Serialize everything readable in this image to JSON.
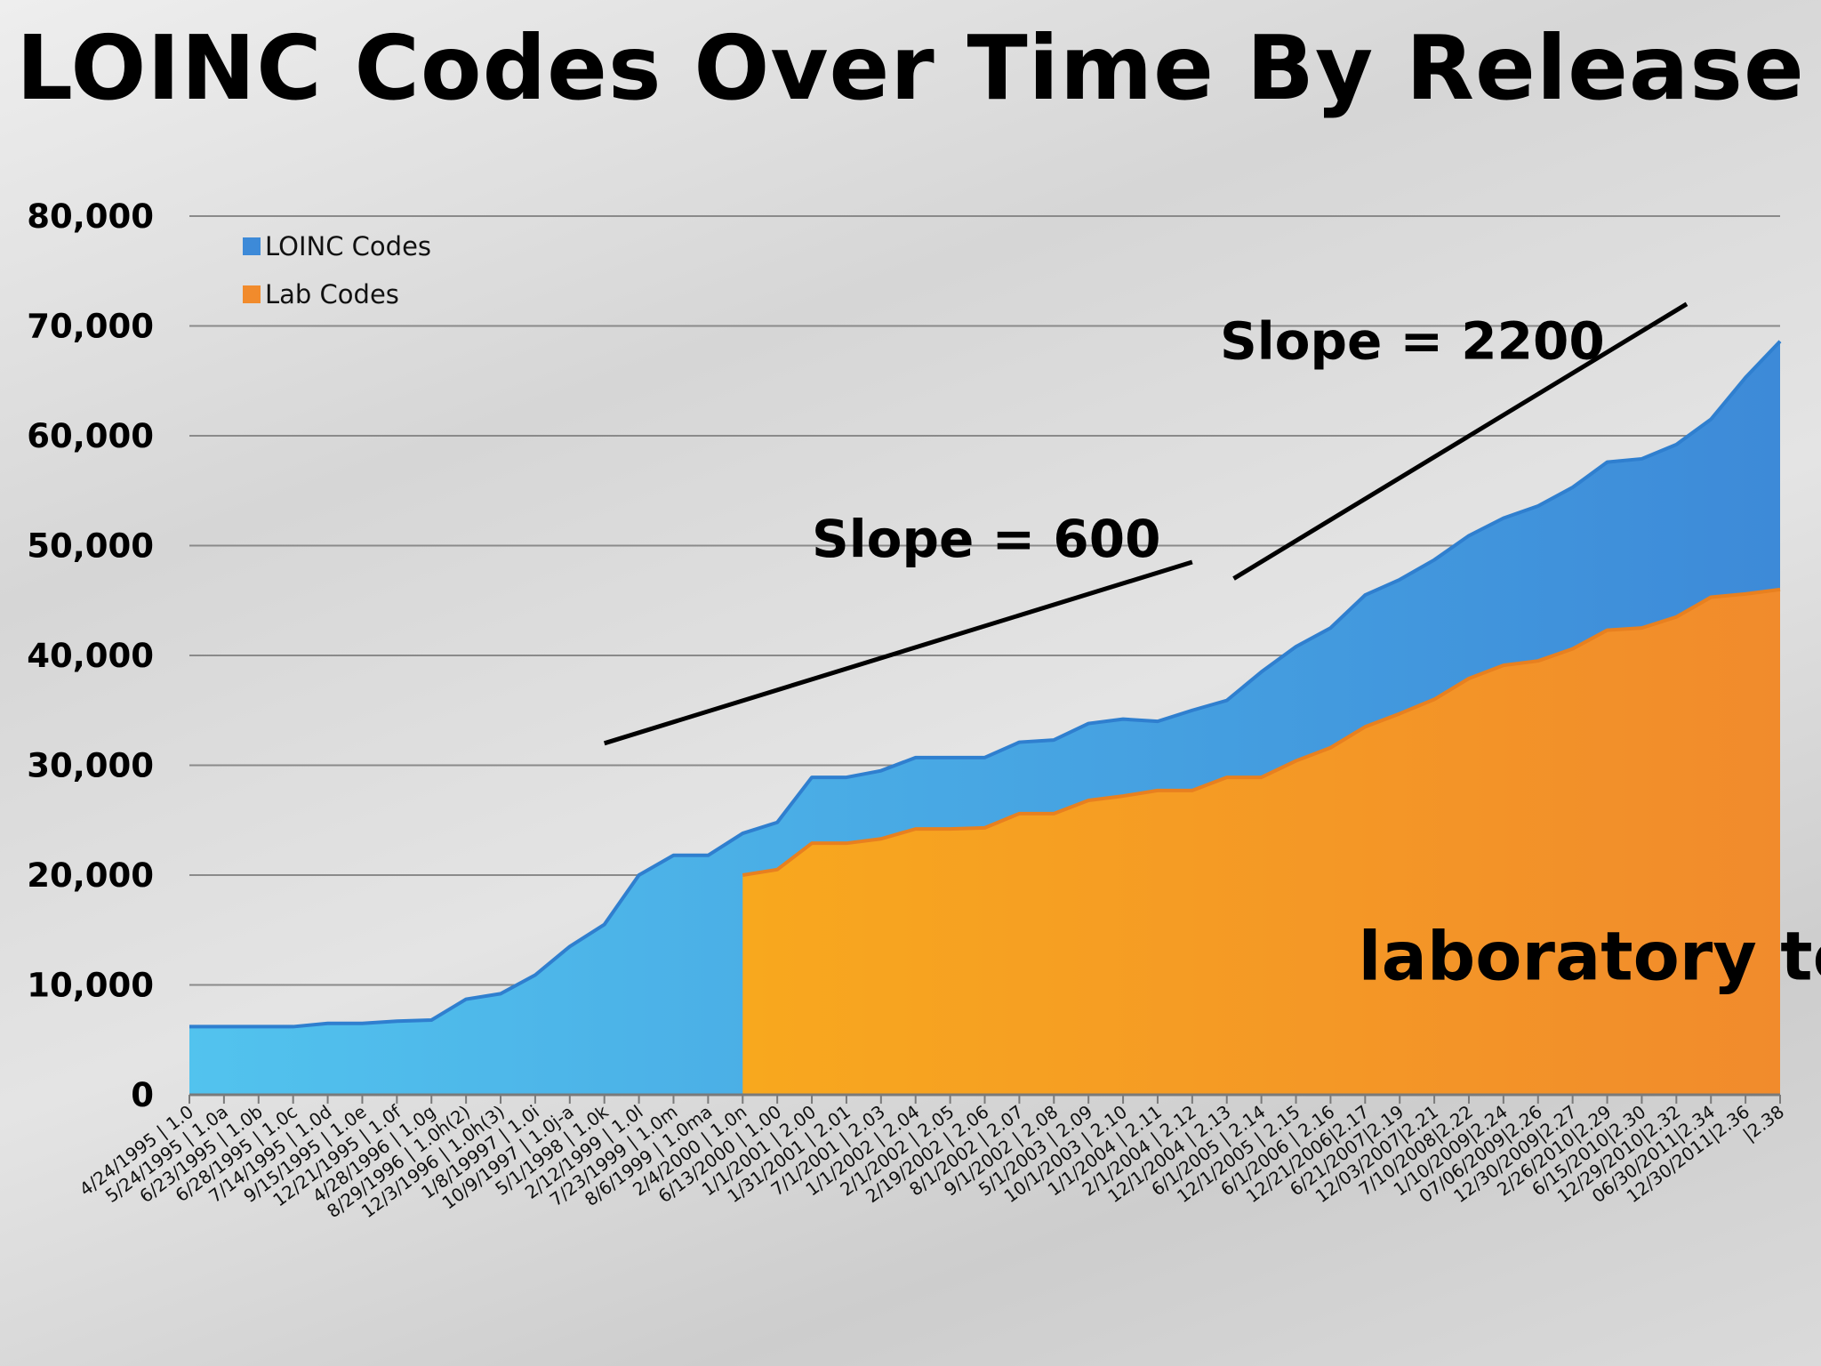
{
  "chart_data": {
    "type": "area",
    "title": "LOINC Codes Over Time By Release",
    "xlabel": "",
    "ylabel": "",
    "ylim": [
      0,
      80000
    ],
    "yticks": [
      "0",
      "10,000",
      "20,000",
      "30,000",
      "40,000",
      "50,000",
      "60,000",
      "70,000",
      "80,000"
    ],
    "ytick_values": [
      0,
      10000,
      20000,
      30000,
      40000,
      50000,
      60000,
      70000,
      80000
    ],
    "grid": true,
    "legend_position": "top-left",
    "categories": [
      "4/24/1995 | 1.0",
      "5/24/1995 | 1.0a",
      "6/23/1995 | 1.0b",
      "6/28/1995 | 1.0c",
      "7/14/1995 | 1.0d",
      "9/15/1995 | 1.0e",
      "12/21/1995 | 1.0f",
      "4/28/1996 | 1.0g",
      "8/29/1996 | 1.0h(2)",
      "12/3/1996 | 1.0h(3)",
      "1/8/19997 | 1.0i",
      "10/9/1997 | 1.0j-a",
      "5/1/1998 | 1.0k",
      "2/12/1999 | 1.0l",
      "7/23/1999 | 1.0m",
      "8/6/1999 | 1.0ma",
      "2/4/2000 | 1.0n",
      "6/13/2000 | 1.00",
      "1/1/2001 | 2.00",
      "1/31/2001 | 2.01",
      "7/1/2001 | 2.03",
      "1/1/2002 | 2.04",
      "2/1/2002 | 2.05",
      "2/19/2002 | 2.06",
      "8/1/2002 | 2.07",
      "9/1/2002 | 2.08",
      "5/1/2003 | 2.09",
      "10/1/2003 | 2.10",
      "1/1/2004 | 2.11",
      "2/1/2004 | 2.12",
      "12/1/2004 | 2.13",
      "6/1/2005 | 2.14",
      "12/1/2005 | 2.15",
      "6/1/2006 | 2.16",
      "12/21/2006|2.17",
      "6/21/2007|2.19",
      "12/03/2007|2.21",
      "7/10/2008|2.22",
      "1/10/2009|2.24",
      "07/06/2009|2.26",
      "12/30/2009|2.27",
      "2/26/2010|2.29",
      "6/15/2010|2.30",
      "12/29/2010|2.32",
      "06/30/2011|2.34",
      "12/30/2011|2.36",
      "|2.38"
    ],
    "series": [
      {
        "name": "LOINC Codes",
        "color": "#3d8ad8",
        "color_left": "#52c3ee",
        "values": [
          6200,
          6200,
          6200,
          6200,
          6500,
          6500,
          6700,
          6800,
          8700,
          9200,
          10900,
          13500,
          15500,
          20000,
          21800,
          21800,
          23800,
          24800,
          28900,
          28900,
          29500,
          30700,
          30700,
          30700,
          32100,
          32300,
          33800,
          34200,
          34000,
          35000,
          35900,
          38500,
          40800,
          42500,
          45500,
          46900,
          48700,
          50900,
          52500,
          53600,
          55300,
          57600,
          57900,
          59200,
          61500,
          65300,
          68600
        ]
      },
      {
        "name": "Lab Codes",
        "color": "#f18b2c",
        "color_left": "#f8a81e",
        "values": [
          null,
          null,
          null,
          null,
          null,
          null,
          null,
          null,
          null,
          null,
          null,
          null,
          null,
          null,
          null,
          null,
          20000,
          20500,
          22900,
          22900,
          23300,
          24200,
          24200,
          24300,
          25600,
          25600,
          26800,
          27200,
          27700,
          27700,
          28900,
          28900,
          30400,
          31600,
          33500,
          34700,
          36000,
          37900,
          39100,
          39500,
          40600,
          42300,
          42500,
          43500,
          45300,
          45600,
          46000
        ]
      }
    ],
    "annotations": [
      {
        "text": "Slope = 600",
        "line_from": {
          "category": 12,
          "value": 32000
        },
        "line_to": {
          "category": 29,
          "value": 48500
        },
        "label_at": {
          "category": 18.0,
          "value": 49000
        }
      },
      {
        "text": "Slope = 2200",
        "line_from": {
          "category": 30.2,
          "value": 47000
        },
        "line_to": {
          "category": 43.3,
          "value": 72000
        },
        "label_at": {
          "category": 29.8,
          "value": 67000
        }
      },
      {
        "text": "laboratory terms only",
        "label_at": {
          "category": 33.8,
          "value": 10500
        }
      }
    ]
  }
}
